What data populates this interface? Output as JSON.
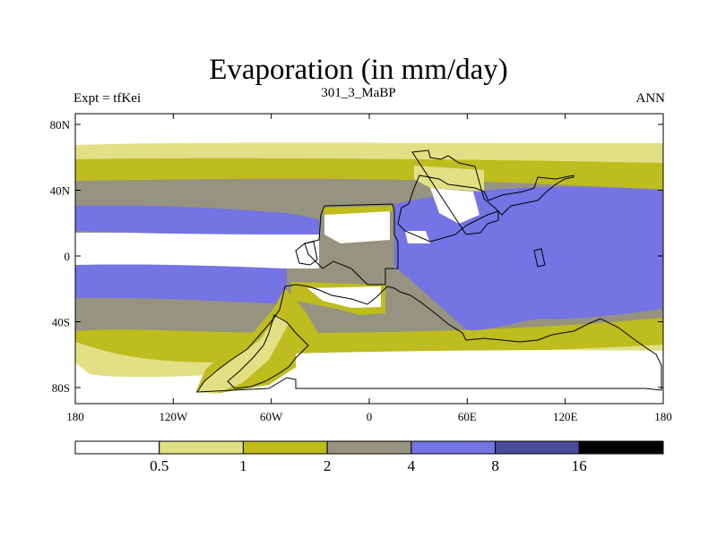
{
  "title": "Evaporation (in mm/day)",
  "left_label": "Expt = tfKei",
  "center_label": "301_3_MaBP",
  "right_label": "ANN",
  "x_ticks": [
    "180",
    "120W",
    "60W",
    "0",
    "60E",
    "120E",
    "180"
  ],
  "y_ticks": [
    "80N",
    "40N",
    "0",
    "40S",
    "80S"
  ],
  "colorbar": {
    "colors": [
      "#ffffff",
      "#e2e084",
      "#bebc1e",
      "#969380",
      "#7474e4",
      "#4a4a9c",
      "#000000"
    ],
    "labels": [
      "0.5",
      "1",
      "2",
      "4",
      "8",
      "16"
    ]
  }
}
